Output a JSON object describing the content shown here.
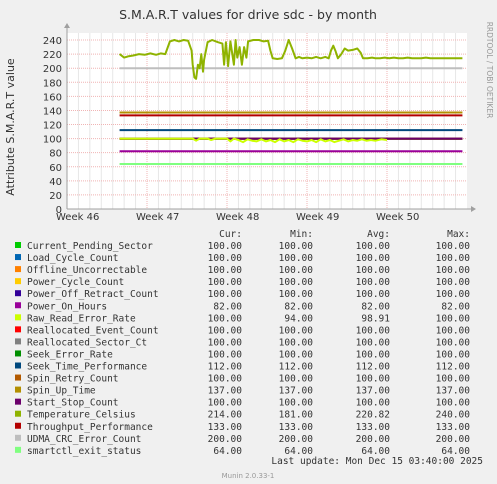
{
  "chart_data": {
    "type": "line",
    "title": "S.M.A.R.T values for drive sdc - by month",
    "ylabel": "Attribute S.M.A.R.T value",
    "side_label": "RRDTOOL / TOBI OETIKER",
    "ylim": [
      0,
      250
    ],
    "yticks": [
      0,
      20,
      40,
      60,
      80,
      100,
      120,
      140,
      160,
      180,
      200,
      220,
      240
    ],
    "x_ticks": [
      "Week 46",
      "Week 47",
      "Week 48",
      "Week 49",
      "Week 50"
    ],
    "xlim": [
      0,
      35
    ],
    "x_unit": "days from Week 46 tick",
    "data_start_x": 4.6,
    "grid": true,
    "legend_headers": [
      "Cur:",
      "Min:",
      "Avg:",
      "Max:"
    ],
    "series": [
      {
        "name": "Current_Pending_Sector",
        "color": "#00cc00",
        "cur": "100.00",
        "min": "100.00",
        "avg": "100.00",
        "max": "100.00",
        "level": 100
      },
      {
        "name": "Load_Cycle_Count",
        "color": "#0066b3",
        "cur": "100.00",
        "min": "100.00",
        "avg": "100.00",
        "max": "100.00",
        "level": 100
      },
      {
        "name": "Offline_Uncorrectable",
        "color": "#ff8000",
        "cur": "100.00",
        "min": "100.00",
        "avg": "100.00",
        "max": "100.00",
        "level": 100
      },
      {
        "name": "Power_Cycle_Count",
        "color": "#ffcc00",
        "cur": "100.00",
        "min": "100.00",
        "avg": "100.00",
        "max": "100.00",
        "level": 100
      },
      {
        "name": "Power_Off_Retract_Count",
        "color": "#330099",
        "cur": "100.00",
        "min": "100.00",
        "avg": "100.00",
        "max": "100.00",
        "level": 100
      },
      {
        "name": "Power_On_Hours",
        "color": "#990099",
        "cur": "82.00",
        "min": "82.00",
        "avg": "82.00",
        "max": "82.00",
        "level": 82
      },
      {
        "name": "Raw_Read_Error_Rate",
        "color": "#ccff00",
        "cur": "100.00",
        "min": "94.00",
        "avg": "98.91",
        "max": "100.00",
        "level": 100
      },
      {
        "name": "Reallocated_Event_Count",
        "color": "#ff0000",
        "cur": "100.00",
        "min": "100.00",
        "avg": "100.00",
        "max": "100.00",
        "level": 100
      },
      {
        "name": "Reallocated_Sector_Ct",
        "color": "#808080",
        "cur": "100.00",
        "min": "100.00",
        "avg": "100.00",
        "max": "100.00",
        "level": 100
      },
      {
        "name": "Seek_Error_Rate",
        "color": "#008f00",
        "cur": "100.00",
        "min": "100.00",
        "avg": "100.00",
        "max": "100.00",
        "level": 100
      },
      {
        "name": "Seek_Time_Performance",
        "color": "#00487d",
        "cur": "112.00",
        "min": "112.00",
        "avg": "112.00",
        "max": "112.00",
        "level": 112
      },
      {
        "name": "Spin_Retry_Count",
        "color": "#b35a00",
        "cur": "100.00",
        "min": "100.00",
        "avg": "100.00",
        "max": "100.00",
        "level": 100
      },
      {
        "name": "Spin_Up_Time",
        "color": "#b38f00",
        "cur": "137.00",
        "min": "137.00",
        "avg": "137.00",
        "max": "137.00",
        "level": 137
      },
      {
        "name": "Start_Stop_Count",
        "color": "#6b006b",
        "cur": "100.00",
        "min": "100.00",
        "avg": "100.00",
        "max": "100.00",
        "level": 100
      },
      {
        "name": "Temperature_Celsius",
        "color": "#8fb300",
        "cur": "214.00",
        "min": "181.00",
        "avg": "220.82",
        "max": "240.00",
        "level": 214
      },
      {
        "name": "Throughput_Performance",
        "color": "#b30000",
        "cur": "133.00",
        "min": "133.00",
        "avg": "133.00",
        "max": "133.00",
        "level": 133
      },
      {
        "name": "UDMA_CRC_Error_Count",
        "color": "#bebebe",
        "cur": "200.00",
        "min": "200.00",
        "avg": "200.00",
        "max": "200.00",
        "level": 200
      },
      {
        "name": "smartctl_exit_status",
        "color": "#80ff80",
        "cur": "64.00",
        "min": "64.00",
        "avg": "64.00",
        "max": "64.00",
        "level": 64
      }
    ],
    "temperature_points": [
      [
        4.6,
        220
      ],
      [
        5.0,
        215
      ],
      [
        5.4,
        217
      ],
      [
        5.8,
        218
      ],
      [
        6.3,
        220
      ],
      [
        6.8,
        219
      ],
      [
        7.3,
        221
      ],
      [
        7.8,
        219
      ],
      [
        8.2,
        221
      ],
      [
        8.6,
        220
      ],
      [
        9.0,
        238
      ],
      [
        9.4,
        240
      ],
      [
        9.8,
        238
      ],
      [
        10.2,
        240
      ],
      [
        10.6,
        239
      ],
      [
        10.9,
        225
      ],
      [
        11.0,
        205
      ],
      [
        11.15,
        187
      ],
      [
        11.3,
        185
      ],
      [
        11.45,
        205
      ],
      [
        11.6,
        200
      ],
      [
        11.75,
        220
      ],
      [
        11.9,
        195
      ],
      [
        12.0,
        212
      ],
      [
        12.3,
        237
      ],
      [
        12.7,
        240
      ],
      [
        13.2,
        237
      ],
      [
        13.6,
        235
      ],
      [
        13.75,
        205
      ],
      [
        13.9,
        237
      ],
      [
        14.1,
        203
      ],
      [
        14.3,
        238
      ],
      [
        14.45,
        222
      ],
      [
        14.6,
        205
      ],
      [
        14.75,
        240
      ],
      [
        14.9,
        215
      ],
      [
        15.1,
        230
      ],
      [
        15.3,
        205
      ],
      [
        15.5,
        230
      ],
      [
        15.7,
        215
      ],
      [
        15.85,
        238
      ],
      [
        16.3,
        240
      ],
      [
        16.8,
        240
      ],
      [
        17.2,
        238
      ],
      [
        17.6,
        239
      ],
      [
        17.8,
        225
      ],
      [
        18.0,
        214
      ],
      [
        18.4,
        213
      ],
      [
        18.8,
        214
      ],
      [
        19.1,
        225
      ],
      [
        19.4,
        240
      ],
      [
        19.7,
        228
      ],
      [
        20.0,
        214
      ],
      [
        20.3,
        216
      ],
      [
        20.6,
        214
      ],
      [
        21.0,
        215
      ],
      [
        21.4,
        214
      ],
      [
        21.8,
        216
      ],
      [
        22.2,
        214
      ],
      [
        22.6,
        216
      ],
      [
        22.9,
        214
      ],
      [
        23.1,
        225
      ],
      [
        23.3,
        232
      ],
      [
        23.5,
        224
      ],
      [
        23.7,
        214
      ],
      [
        24.0,
        220
      ],
      [
        24.3,
        228
      ],
      [
        24.6,
        225
      ],
      [
        25.0,
        226
      ],
      [
        25.4,
        228
      ],
      [
        25.7,
        222
      ],
      [
        25.9,
        214
      ],
      [
        26.3,
        214
      ],
      [
        26.7,
        215
      ],
      [
        27.0,
        214
      ],
      [
        27.4,
        214
      ],
      [
        27.8,
        215
      ],
      [
        28.2,
        214
      ],
      [
        28.6,
        215
      ],
      [
        29.0,
        214
      ],
      [
        29.4,
        214
      ],
      [
        29.8,
        215
      ],
      [
        30.2,
        214
      ],
      [
        30.6,
        214
      ],
      [
        31.0,
        214
      ],
      [
        31.4,
        215
      ],
      [
        31.8,
        214
      ],
      [
        32.2,
        214
      ],
      [
        32.6,
        214
      ],
      [
        33.0,
        214
      ],
      [
        33.4,
        214
      ],
      [
        33.8,
        214
      ],
      [
        34.2,
        214
      ],
      [
        34.6,
        214
      ]
    ],
    "raw_read_points": [
      [
        4.6,
        100
      ],
      [
        11.0,
        100
      ],
      [
        11.3,
        97
      ],
      [
        11.6,
        100
      ],
      [
        12.3,
        100
      ],
      [
        12.6,
        98
      ],
      [
        13.0,
        100
      ],
      [
        14.0,
        100
      ],
      [
        14.3,
        96
      ],
      [
        14.6,
        100
      ],
      [
        15.0,
        98
      ],
      [
        15.4,
        95
      ],
      [
        15.8,
        99
      ],
      [
        16.2,
        97
      ],
      [
        16.6,
        96
      ],
      [
        17.0,
        99
      ],
      [
        17.4,
        96
      ],
      [
        17.8,
        98
      ],
      [
        18.2,
        95
      ],
      [
        18.6,
        99
      ],
      [
        19.0,
        96
      ],
      [
        19.4,
        98
      ],
      [
        19.8,
        95
      ],
      [
        20.2,
        99
      ],
      [
        20.6,
        97
      ],
      [
        21.0,
        96
      ],
      [
        21.4,
        98
      ],
      [
        21.8,
        95
      ],
      [
        22.2,
        99
      ],
      [
        22.6,
        96
      ],
      [
        23.0,
        98
      ],
      [
        23.4,
        95
      ],
      [
        23.8,
        97
      ],
      [
        24.2,
        99
      ],
      [
        24.6,
        96
      ],
      [
        25.0,
        98
      ],
      [
        25.4,
        97
      ],
      [
        25.8,
        99
      ],
      [
        26.2,
        97
      ],
      [
        26.6,
        98
      ],
      [
        27.0,
        97
      ],
      [
        27.5,
        99
      ],
      [
        28.0,
        98
      ]
    ]
  },
  "footer": {
    "last_update": "Last update:  Mon Dec 15 03:40:00 2025",
    "version": "Munin 2.0.33-1"
  }
}
